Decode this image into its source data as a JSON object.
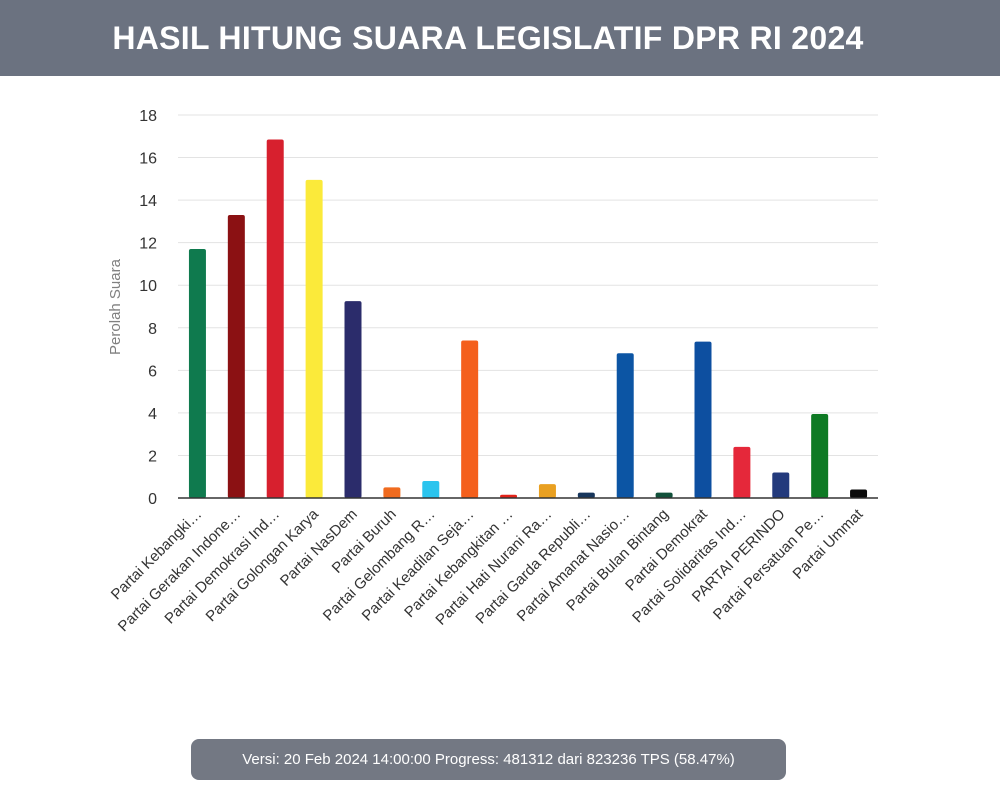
{
  "header": {
    "title": "HASIL HITUNG SUARA LEGISLATIF DPR RI 2024"
  },
  "footer": {
    "status": "Versi: 20 Feb 2024 14:00:00 Progress: 481312 dari 823236 TPS (58.47%)"
  },
  "chart_data": {
    "type": "bar",
    "title": "HASIL HITUNG SUARA LEGISLATIF DPR RI 2024",
    "xlabel": "",
    "ylabel": "Perolah Suara",
    "ylim": [
      0,
      18
    ],
    "yticks": [
      0,
      2,
      4,
      6,
      8,
      10,
      12,
      14,
      16,
      18
    ],
    "grid": true,
    "categories": [
      "Partai Kebangki…",
      "Partai Gerakan Indone…",
      "Partai Demokrasi Ind…",
      "Partai Golongan Karya",
      "Partai NasDem",
      "Partai Buruh",
      "Partai Gelombang R…",
      "Partai Keadilan Seja…",
      "Partai Kebangkitan …",
      "Partai Hati Nurani Ra…",
      "Partai Garda Republi…",
      "Partai Amanat Nasio…",
      "Partai Bulan Bintang",
      "Partai Demokrat",
      "Partai Solidaritas Ind…",
      "PARTAI PERINDO",
      "Partai Persatuan Pe…",
      "Partai Ummat"
    ],
    "values": [
      11.7,
      13.3,
      16.85,
      14.95,
      9.25,
      0.5,
      0.8,
      7.4,
      0.15,
      0.65,
      0.25,
      6.8,
      0.25,
      7.35,
      2.4,
      1.2,
      3.95,
      0.4
    ],
    "colors": [
      "#0f7a4e",
      "#8b1113",
      "#d7202e",
      "#fbea3a",
      "#2b2c6b",
      "#f06b1f",
      "#2bc4ee",
      "#f4601d",
      "#e2231a",
      "#e9a021",
      "#17365c",
      "#0c55a4",
      "#12513b",
      "#0d4fa0",
      "#e5283a",
      "#233a7c",
      "#0e7a24",
      "#0b0b0b"
    ]
  }
}
